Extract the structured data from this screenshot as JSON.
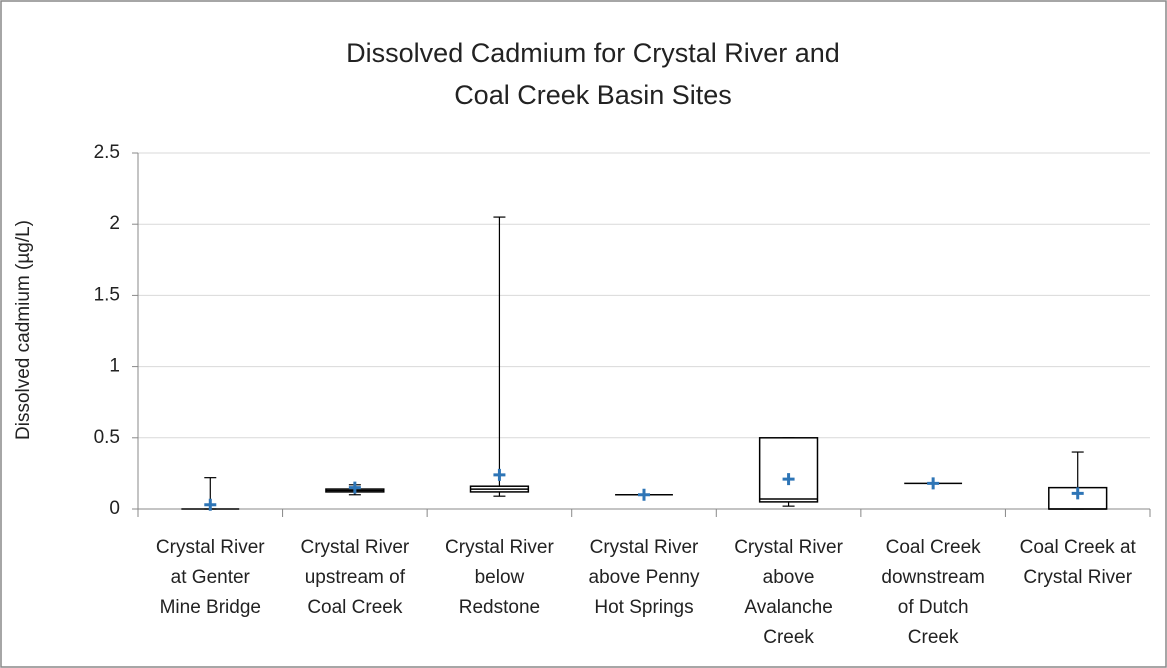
{
  "chart_data": {
    "type": "box",
    "title": [
      "Dissolved Cadmium for Crystal River and",
      "Coal Creek Basin Sites"
    ],
    "y_label": "Dissolved cadmium (µg/L)",
    "categories": [
      [
        "Crystal River",
        "at Genter",
        "Mine Bridge"
      ],
      [
        "Crystal River",
        "upstream of",
        "Coal Creek"
      ],
      [
        "Crystal River",
        "below",
        "Redstone"
      ],
      [
        "Crystal River",
        "above Penny",
        "Hot Springs"
      ],
      [
        "Crystal River",
        "above",
        "Avalanche",
        "Creek"
      ],
      [
        "Coal Creek",
        "downstream",
        "of Dutch",
        "Creek"
      ],
      [
        "Coal Creek at",
        "Crystal River"
      ]
    ],
    "min": [
      0,
      0.1,
      0.09,
      0.1,
      0.02,
      0.18,
      0
    ],
    "q1": [
      0,
      0.12,
      0.12,
      0.1,
      0.05,
      0.18,
      0
    ],
    "median": [
      0,
      0.13,
      0.14,
      0.1,
      0.07,
      0.18,
      0
    ],
    "q3": [
      0,
      0.14,
      0.16,
      0.1,
      0.5,
      0.18,
      0.15
    ],
    "max": [
      0.22,
      0.17,
      2.05,
      0.1,
      0.5,
      0.18,
      0.4
    ],
    "mean": [
      0.03,
      0.15,
      0.24,
      0.1,
      0.21,
      0.18,
      0.11
    ],
    "box_color": "#000000",
    "mean_color": "#2e75b6",
    "ylim": [
      0,
      2.5
    ],
    "yticks": [
      0,
      0.5,
      1,
      1.5,
      2,
      2.5
    ],
    "grid": true
  }
}
